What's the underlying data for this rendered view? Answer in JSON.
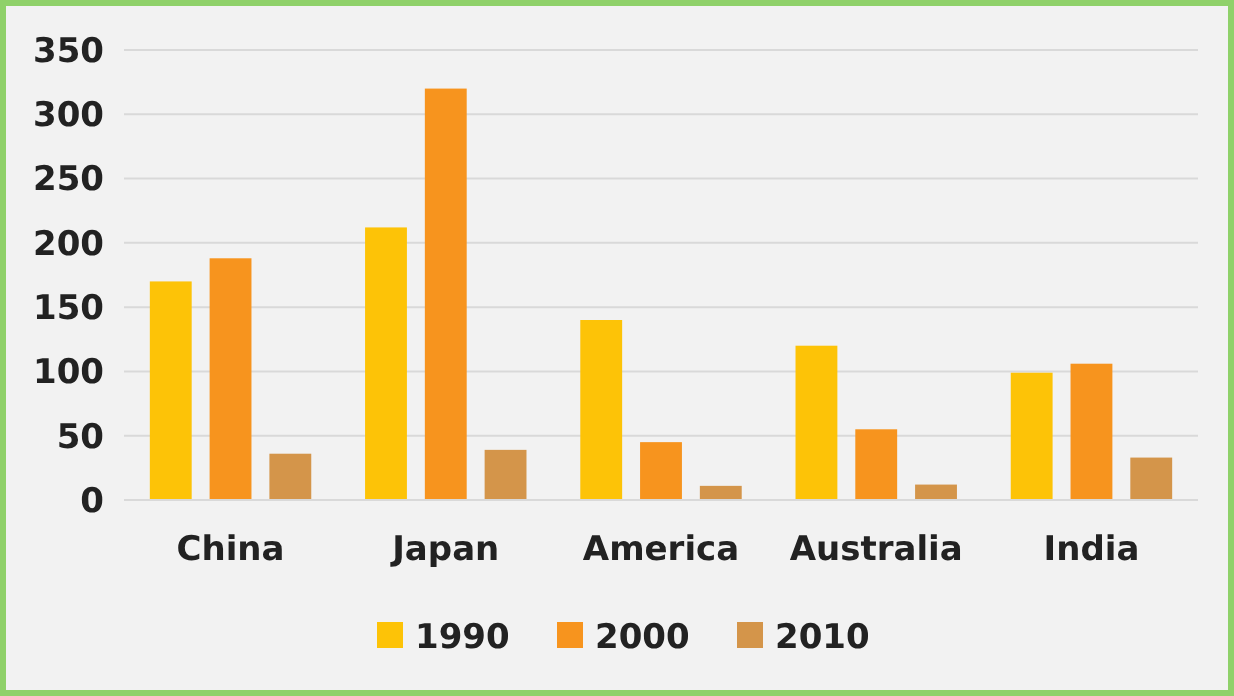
{
  "chart_data": {
    "type": "bar",
    "categories": [
      "China",
      "Japan",
      "America",
      "Australia",
      "India"
    ],
    "series": [
      {
        "name": "1990",
        "color": "#fdc307",
        "values": [
          170,
          212,
          140,
          120,
          99
        ]
      },
      {
        "name": "2000",
        "color": "#f7941e",
        "values": [
          188,
          320,
          45,
          55,
          106
        ]
      },
      {
        "name": "2010",
        "color": "#d4954a",
        "values": [
          36,
          39,
          11,
          12,
          33
        ]
      }
    ],
    "ylim": [
      0,
      350
    ],
    "yticks": [
      0,
      50,
      100,
      150,
      200,
      250,
      300,
      350
    ],
    "grid": "y",
    "legend": "bottom"
  }
}
